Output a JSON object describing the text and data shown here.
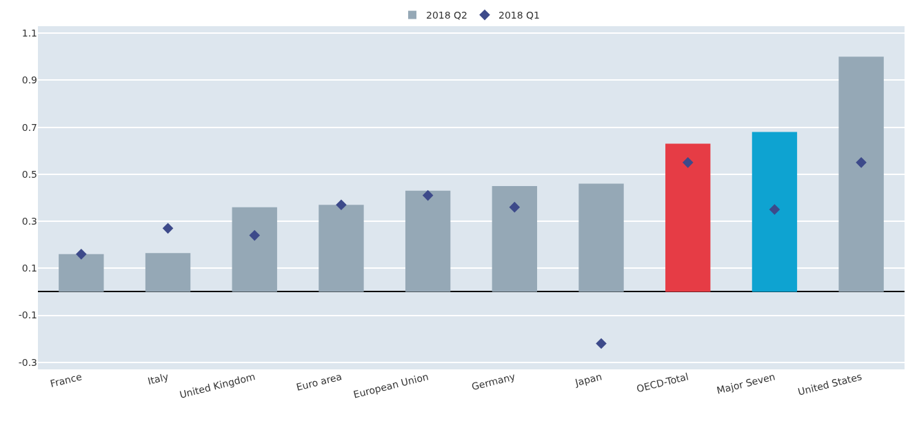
{
  "chart_data": {
    "type": "bar",
    "categories": [
      "France",
      "Italy",
      "United Kingdom",
      "Euro area",
      "European Union",
      "Germany",
      "Japan",
      "OECD-Total",
      "Major Seven",
      "United States"
    ],
    "series": [
      {
        "name": "2018 Q2",
        "color": "#95a8b6",
        "colors": [
          "#95a8b6",
          "#95a8b6",
          "#95a8b6",
          "#95a8b6",
          "#95a8b6",
          "#95a8b6",
          "#95a8b6",
          "#e63c45",
          "#0ea3d1",
          "#95a8b6"
        ],
        "values": [
          0.16,
          0.165,
          0.36,
          0.37,
          0.43,
          0.45,
          0.46,
          0.63,
          0.68,
          1.0
        ]
      },
      {
        "name": "2018 Q1",
        "type": "scatter",
        "color": "#3d4a8a",
        "marker": "diamond",
        "values": [
          0.16,
          0.27,
          0.24,
          0.37,
          0.41,
          0.36,
          -0.22,
          0.55,
          0.35,
          0.55
        ]
      }
    ],
    "ylim": [
      -0.33,
      1.13
    ],
    "yticks": [
      {
        "value": -0.3,
        "label": "-0.3"
      },
      {
        "value": -0.1,
        "label": "-0.1"
      },
      0.1,
      0.3,
      0.5,
      0.7,
      0.9,
      1.1
    ],
    "grid": "y",
    "legend": "top"
  }
}
